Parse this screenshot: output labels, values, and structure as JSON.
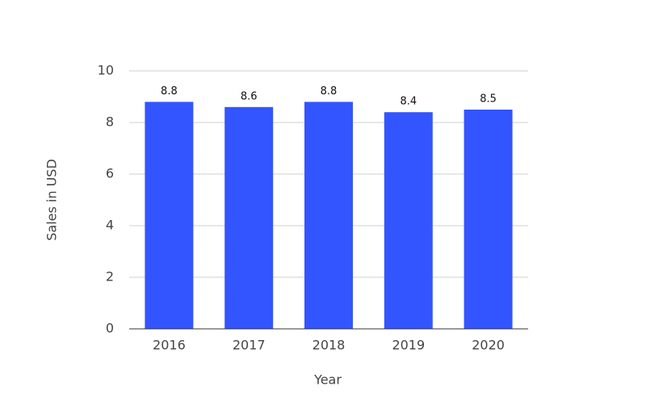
{
  "chart_data": {
    "type": "bar",
    "x_label": "Year",
    "y_label": "Sales in USD",
    "categories": [
      "2016",
      "2017",
      "2018",
      "2019",
      "2020"
    ],
    "values": [
      8.8,
      8.6,
      8.8,
      8.4,
      8.5
    ],
    "color": "#3355ff",
    "ylim": [
      0,
      10
    ],
    "yticks": [
      0,
      2,
      4,
      6,
      8,
      10
    ],
    "grid": true,
    "data_labels": true
  }
}
